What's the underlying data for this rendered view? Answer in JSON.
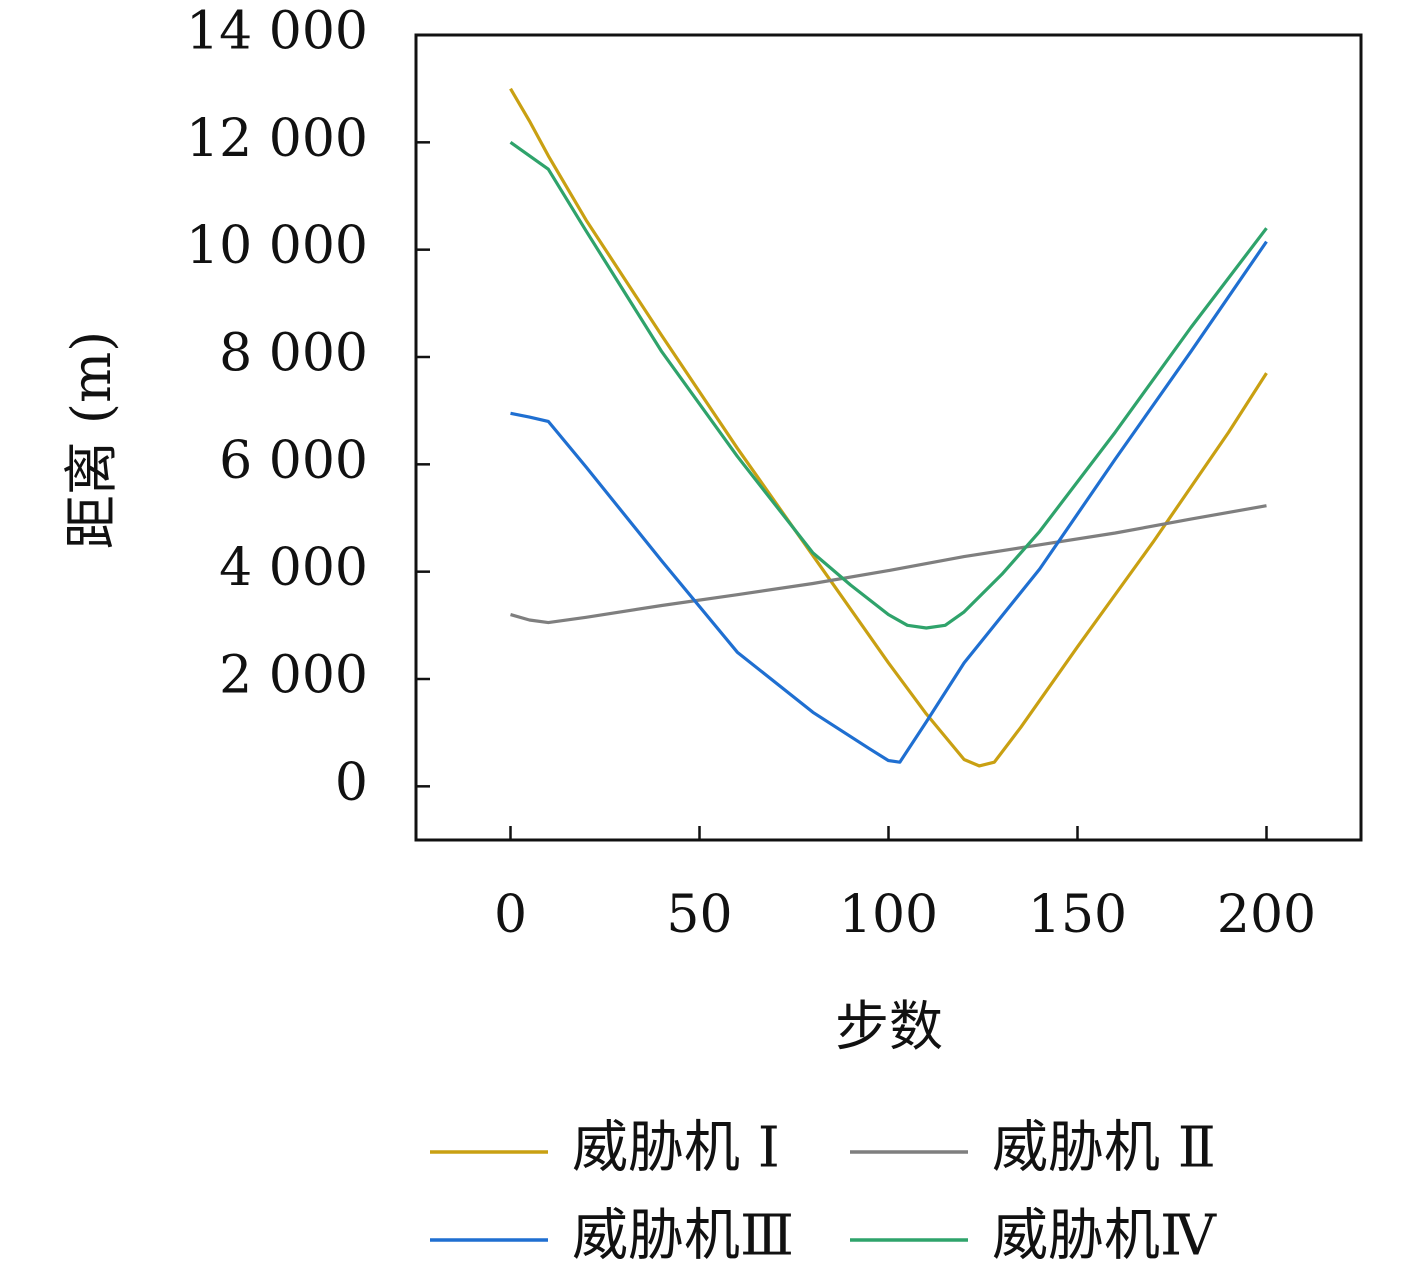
{
  "chart_data": {
    "type": "line",
    "title": "",
    "xlabel": "步数",
    "ylabel": "距离 (m)",
    "xlim": [
      -25,
      225
    ],
    "ylim": [
      -1000,
      14000
    ],
    "xticks": [
      0,
      50,
      100,
      150,
      200
    ],
    "xtick_labels": [
      "0",
      "50",
      "100",
      "150",
      "200"
    ],
    "yticks": [
      0,
      2000,
      4000,
      6000,
      8000,
      10000,
      12000,
      14000
    ],
    "ytick_labels": [
      "0",
      "2 000",
      "4 000",
      "6 000",
      "8 000",
      "10 000",
      "12 000",
      "14 000"
    ],
    "grid": false,
    "legend_position": "bottom",
    "series": [
      {
        "name": "威胁机 Ⅰ",
        "color": "#c9a012",
        "points": [
          [
            0,
            13000
          ],
          [
            5,
            12400
          ],
          [
            10,
            11750
          ],
          [
            20,
            10550
          ],
          [
            40,
            8400
          ],
          [
            60,
            6300
          ],
          [
            80,
            4300
          ],
          [
            100,
            2300
          ],
          [
            110,
            1350
          ],
          [
            120,
            500
          ],
          [
            124,
            380
          ],
          [
            128,
            450
          ],
          [
            135,
            1100
          ],
          [
            150,
            2600
          ],
          [
            170,
            4550
          ],
          [
            190,
            6600
          ],
          [
            200,
            7700
          ]
        ]
      },
      {
        "name": "威胁机 Ⅱ",
        "color": "#7f7f7f",
        "points": [
          [
            0,
            3200
          ],
          [
            5,
            3100
          ],
          [
            10,
            3050
          ],
          [
            20,
            3150
          ],
          [
            40,
            3370
          ],
          [
            60,
            3570
          ],
          [
            80,
            3780
          ],
          [
            100,
            4020
          ],
          [
            120,
            4280
          ],
          [
            140,
            4500
          ],
          [
            160,
            4720
          ],
          [
            180,
            4980
          ],
          [
            200,
            5230
          ]
        ]
      },
      {
        "name": "威胁机Ⅲ",
        "color": "#1f6fd1",
        "points": [
          [
            0,
            6950
          ],
          [
            5,
            6880
          ],
          [
            10,
            6800
          ],
          [
            20,
            5950
          ],
          [
            40,
            4200
          ],
          [
            60,
            2500
          ],
          [
            80,
            1380
          ],
          [
            95,
            700
          ],
          [
            100,
            480
          ],
          [
            103,
            450
          ],
          [
            110,
            1200
          ],
          [
            120,
            2300
          ],
          [
            140,
            4050
          ],
          [
            160,
            6100
          ],
          [
            180,
            8100
          ],
          [
            200,
            10150
          ]
        ]
      },
      {
        "name": "威胁机Ⅳ",
        "color": "#2fa36b",
        "points": [
          [
            0,
            12000
          ],
          [
            10,
            11500
          ],
          [
            20,
            10350
          ],
          [
            40,
            8100
          ],
          [
            60,
            6150
          ],
          [
            80,
            4350
          ],
          [
            90,
            3750
          ],
          [
            100,
            3200
          ],
          [
            105,
            3000
          ],
          [
            110,
            2950
          ],
          [
            115,
            3000
          ],
          [
            120,
            3250
          ],
          [
            130,
            3950
          ],
          [
            140,
            4750
          ],
          [
            160,
            6600
          ],
          [
            180,
            8550
          ],
          [
            200,
            10400
          ]
        ]
      }
    ]
  }
}
